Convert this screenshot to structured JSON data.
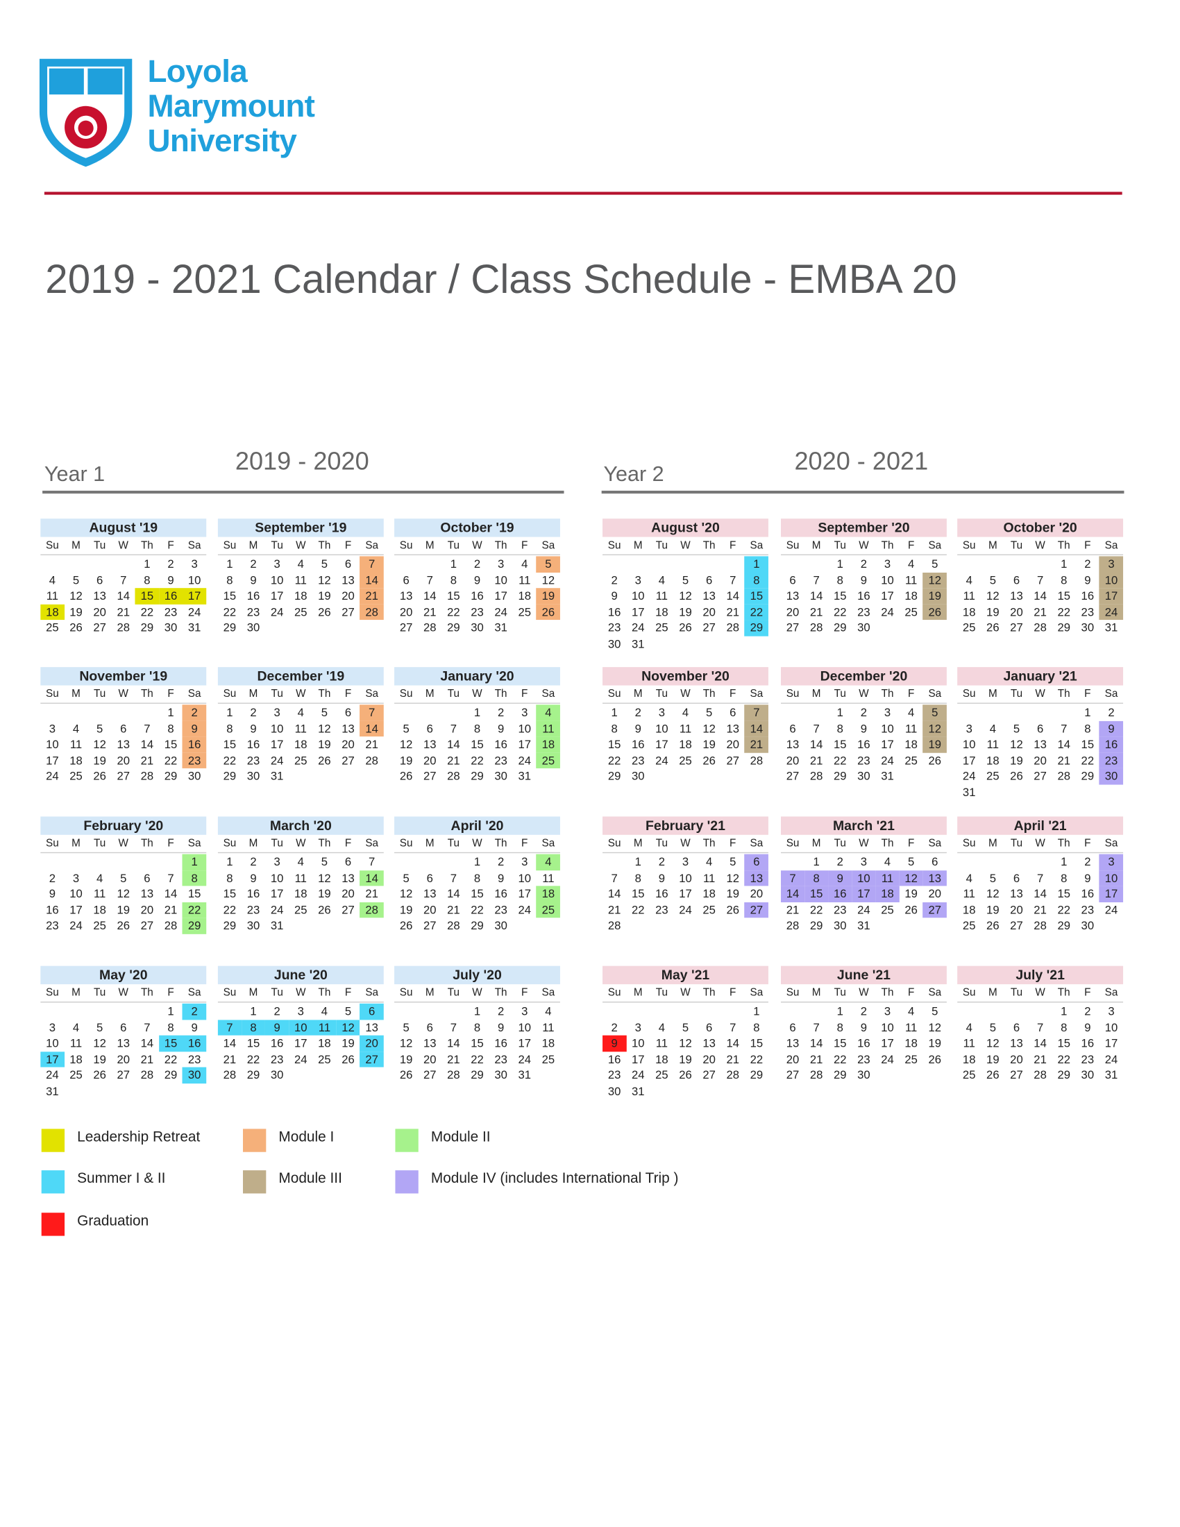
{
  "logo": [
    "Loyola",
    "Marymount",
    "University"
  ],
  "title": "2019 - 2021 Calendar / Class Schedule - EMBA 20",
  "weekdays": [
    "Su",
    "M",
    "Tu",
    "W",
    "Th",
    "F",
    "Sa"
  ],
  "legend": [
    {
      "label": "Leadership Retreat",
      "color": "#e2e200"
    },
    {
      "label": "Module I",
      "color": "#f5b07a"
    },
    {
      "label": "Module II",
      "color": "#a6f28c"
    },
    {
      "label": "Summer I & II",
      "color": "#4fd8f7"
    },
    {
      "label": "Module III",
      "color": "#bfae8a"
    },
    {
      "label": "Module IV (includes International Trip )",
      "color": "#b2a6f5"
    },
    {
      "label": "Graduation",
      "color": "#ff1a1a"
    }
  ],
  "years": [
    {
      "label": "Year 1",
      "range": "2019 - 2020",
      "header_color": "#d5e8f8",
      "months": [
        {
          "name": "August '19",
          "days": [
            null,
            null,
            null,
            null,
            1,
            2,
            3,
            4,
            5,
            6,
            7,
            8,
            9,
            10,
            11,
            12,
            13,
            14,
            15,
            16,
            17,
            18,
            19,
            20,
            21,
            22,
            23,
            24,
            25,
            26,
            27,
            28,
            29,
            30,
            31
          ],
          "marked": [
            15,
            16,
            17,
            18
          ],
          "key": 0
        },
        {
          "name": "September '19",
          "days": [
            1,
            2,
            3,
            4,
            5,
            6,
            7,
            8,
            9,
            10,
            11,
            12,
            13,
            14,
            15,
            16,
            17,
            18,
            19,
            20,
            21,
            22,
            23,
            24,
            25,
            26,
            27,
            28,
            29,
            30
          ],
          "marked": [
            7,
            14,
            21,
            28
          ],
          "key": 1
        },
        {
          "name": "October '19",
          "days": [
            null,
            null,
            1,
            2,
            3,
            4,
            5,
            6,
            7,
            8,
            9,
            10,
            11,
            12,
            13,
            14,
            15,
            16,
            17,
            18,
            19,
            20,
            21,
            22,
            23,
            24,
            25,
            26,
            27,
            28,
            29,
            30,
            31
          ],
          "marked": [
            5,
            19,
            26
          ],
          "key": 1
        },
        {
          "name": "November '19",
          "days": [
            null,
            null,
            null,
            null,
            null,
            1,
            2,
            3,
            4,
            5,
            6,
            7,
            8,
            9,
            10,
            11,
            12,
            13,
            14,
            15,
            16,
            17,
            18,
            19,
            20,
            21,
            22,
            23,
            24,
            25,
            26,
            27,
            28,
            29,
            30
          ],
          "marked": [
            2,
            9,
            16,
            23
          ],
          "key": 1
        },
        {
          "name": "December '19",
          "days": [
            1,
            2,
            3,
            4,
            5,
            6,
            7,
            8,
            9,
            10,
            11,
            12,
            13,
            14,
            15,
            16,
            17,
            18,
            19,
            20,
            21,
            22,
            23,
            24,
            25,
            26,
            27,
            28,
            29,
            30,
            31
          ],
          "marked": [
            7,
            14
          ],
          "key": 1
        },
        {
          "name": "January '20",
          "days": [
            null,
            null,
            null,
            1,
            2,
            3,
            4,
            5,
            6,
            7,
            8,
            9,
            10,
            11,
            12,
            13,
            14,
            15,
            16,
            17,
            18,
            19,
            20,
            21,
            22,
            23,
            24,
            25,
            26,
            27,
            28,
            29,
            30,
            31
          ],
          "marked": [
            4,
            11,
            18,
            25
          ],
          "key": 2
        },
        {
          "name": "February '20",
          "days": [
            null,
            null,
            null,
            null,
            null,
            null,
            1,
            2,
            3,
            4,
            5,
            6,
            7,
            8,
            9,
            10,
            11,
            12,
            13,
            14,
            15,
            16,
            17,
            18,
            19,
            20,
            21,
            22,
            23,
            24,
            25,
            26,
            27,
            28,
            29
          ],
          "marked": [
            1,
            8,
            22,
            29
          ],
          "key": 2
        },
        {
          "name": "March '20",
          "days": [
            1,
            2,
            3,
            4,
            5,
            6,
            7,
            8,
            9,
            10,
            11,
            12,
            13,
            14,
            15,
            16,
            17,
            18,
            19,
            20,
            21,
            22,
            23,
            24,
            25,
            26,
            27,
            28,
            29,
            30,
            31
          ],
          "marked": [
            14,
            28
          ],
          "key": 2
        },
        {
          "name": "April '20",
          "days": [
            null,
            null,
            null,
            1,
            2,
            3,
            4,
            5,
            6,
            7,
            8,
            9,
            10,
            11,
            12,
            13,
            14,
            15,
            16,
            17,
            18,
            19,
            20,
            21,
            22,
            23,
            24,
            25,
            26,
            27,
            28,
            29,
            30
          ],
          "marked": [
            4,
            18,
            25
          ],
          "key": 2
        },
        {
          "name": "May '20",
          "days": [
            null,
            null,
            null,
            null,
            null,
            1,
            2,
            3,
            4,
            5,
            6,
            7,
            8,
            9,
            10,
            11,
            12,
            13,
            14,
            15,
            16,
            17,
            18,
            19,
            20,
            21,
            22,
            23,
            24,
            25,
            26,
            27,
            28,
            29,
            30,
            31
          ],
          "marked": [
            2,
            15,
            16,
            17,
            30
          ],
          "key": 3
        },
        {
          "name": "June '20",
          "days": [
            null,
            1,
            2,
            3,
            4,
            5,
            6,
            7,
            8,
            9,
            10,
            11,
            12,
            13,
            14,
            15,
            16,
            17,
            18,
            19,
            20,
            21,
            22,
            23,
            24,
            25,
            26,
            27,
            28,
            29,
            30
          ],
          "marked": [
            6,
            7,
            8,
            9,
            10,
            11,
            12,
            20,
            27
          ],
          "key": 3
        },
        {
          "name": "July '20",
          "days": [
            null,
            null,
            null,
            1,
            2,
            3,
            4,
            5,
            6,
            7,
            8,
            9,
            10,
            11,
            12,
            13,
            14,
            15,
            16,
            17,
            18,
            19,
            20,
            21,
            22,
            23,
            24,
            25,
            26,
            27,
            28,
            29,
            30,
            31
          ],
          "marked": [],
          "key": 3
        }
      ]
    },
    {
      "label": "Year 2",
      "range": "2020 - 2021",
      "header_color": "#f4d6dd",
      "months": [
        {
          "name": "August '20",
          "days": [
            null,
            null,
            null,
            null,
            null,
            null,
            1,
            2,
            3,
            4,
            5,
            6,
            7,
            8,
            9,
            10,
            11,
            12,
            13,
            14,
            15,
            16,
            17,
            18,
            19,
            20,
            21,
            22,
            23,
            24,
            25,
            26,
            27,
            28,
            29,
            30,
            31
          ],
          "marked": [
            1,
            8,
            15,
            22,
            29
          ],
          "key": 3
        },
        {
          "name": "September '20",
          "days": [
            null,
            null,
            1,
            2,
            3,
            4,
            5,
            6,
            7,
            8,
            9,
            10,
            11,
            12,
            13,
            14,
            15,
            16,
            17,
            18,
            19,
            20,
            21,
            22,
            23,
            24,
            25,
            26,
            27,
            28,
            29,
            30
          ],
          "marked": [
            12,
            19,
            26
          ],
          "key": 4
        },
        {
          "name": "October '20",
          "days": [
            null,
            null,
            null,
            null,
            1,
            2,
            3,
            4,
            5,
            6,
            7,
            8,
            9,
            10,
            11,
            12,
            13,
            14,
            15,
            16,
            17,
            18,
            19,
            20,
            21,
            22,
            23,
            24,
            25,
            26,
            27,
            28,
            29,
            30,
            31
          ],
          "marked": [
            3,
            10,
            17,
            24
          ],
          "key": 4
        },
        {
          "name": "November '20",
          "days": [
            1,
            2,
            3,
            4,
            5,
            6,
            7,
            8,
            9,
            10,
            11,
            12,
            13,
            14,
            15,
            16,
            17,
            18,
            19,
            20,
            21,
            22,
            23,
            24,
            25,
            26,
            27,
            28,
            29,
            30
          ],
          "marked": [
            7,
            14,
            21
          ],
          "key": 4
        },
        {
          "name": "December '20",
          "days": [
            null,
            null,
            1,
            2,
            3,
            4,
            5,
            6,
            7,
            8,
            9,
            10,
            11,
            12,
            13,
            14,
            15,
            16,
            17,
            18,
            19,
            20,
            21,
            22,
            23,
            24,
            25,
            26,
            27,
            28,
            29,
            30,
            31
          ],
          "marked": [
            5,
            12,
            19
          ],
          "key": 4
        },
        {
          "name": "January '21",
          "days": [
            null,
            null,
            null,
            null,
            null,
            1,
            2,
            3,
            4,
            5,
            6,
            7,
            8,
            9,
            10,
            11,
            12,
            13,
            14,
            15,
            16,
            17,
            18,
            19,
            20,
            21,
            22,
            23,
            24,
            25,
            26,
            27,
            28,
            29,
            30,
            31
          ],
          "marked": [
            9,
            16,
            23,
            30
          ],
          "key": 5
        },
        {
          "name": "February '21",
          "days": [
            null,
            1,
            2,
            3,
            4,
            5,
            6,
            7,
            8,
            9,
            10,
            11,
            12,
            13,
            14,
            15,
            16,
            17,
            18,
            19,
            20,
            21,
            22,
            23,
            24,
            25,
            26,
            27,
            28
          ],
          "marked": [
            6,
            13,
            27
          ],
          "key": 5
        },
        {
          "name": "March '21",
          "days": [
            null,
            1,
            2,
            3,
            4,
            5,
            6,
            7,
            8,
            9,
            10,
            11,
            12,
            13,
            14,
            15,
            16,
            17,
            18,
            19,
            20,
            21,
            22,
            23,
            24,
            25,
            26,
            27,
            28,
            29,
            30,
            31
          ],
          "marked": [
            7,
            8,
            9,
            10,
            11,
            12,
            13,
            14,
            15,
            16,
            17,
            18,
            27
          ],
          "key": 5
        },
        {
          "name": "April '21",
          "days": [
            null,
            null,
            null,
            null,
            1,
            2,
            3,
            4,
            5,
            6,
            7,
            8,
            9,
            10,
            11,
            12,
            13,
            14,
            15,
            16,
            17,
            18,
            19,
            20,
            21,
            22,
            23,
            24,
            25,
            26,
            27,
            28,
            29,
            30
          ],
          "marked": [
            3,
            10,
            17
          ],
          "key": 5
        },
        {
          "name": "May '21",
          "days": [
            null,
            null,
            null,
            null,
            null,
            null,
            1,
            2,
            3,
            4,
            5,
            6,
            7,
            8,
            9,
            10,
            11,
            12,
            13,
            14,
            15,
            16,
            17,
            18,
            19,
            20,
            21,
            22,
            23,
            24,
            25,
            26,
            27,
            28,
            29,
            30,
            31
          ],
          "marked": [
            9
          ],
          "key": 6
        },
        {
          "name": "June '21",
          "days": [
            null,
            null,
            1,
            2,
            3,
            4,
            5,
            6,
            7,
            8,
            9,
            10,
            11,
            12,
            13,
            14,
            15,
            16,
            17,
            18,
            19,
            20,
            21,
            22,
            23,
            24,
            25,
            26,
            27,
            28,
            29,
            30
          ],
          "marked": [],
          "key": 6
        },
        {
          "name": "July '21",
          "days": [
            null,
            null,
            null,
            null,
            1,
            2,
            3,
            4,
            5,
            6,
            7,
            8,
            9,
            10,
            11,
            12,
            13,
            14,
            15,
            16,
            17,
            18,
            19,
            20,
            21,
            22,
            23,
            24,
            25,
            26,
            27,
            28,
            29,
            30,
            31
          ],
          "marked": [],
          "key": 6
        }
      ]
    }
  ]
}
